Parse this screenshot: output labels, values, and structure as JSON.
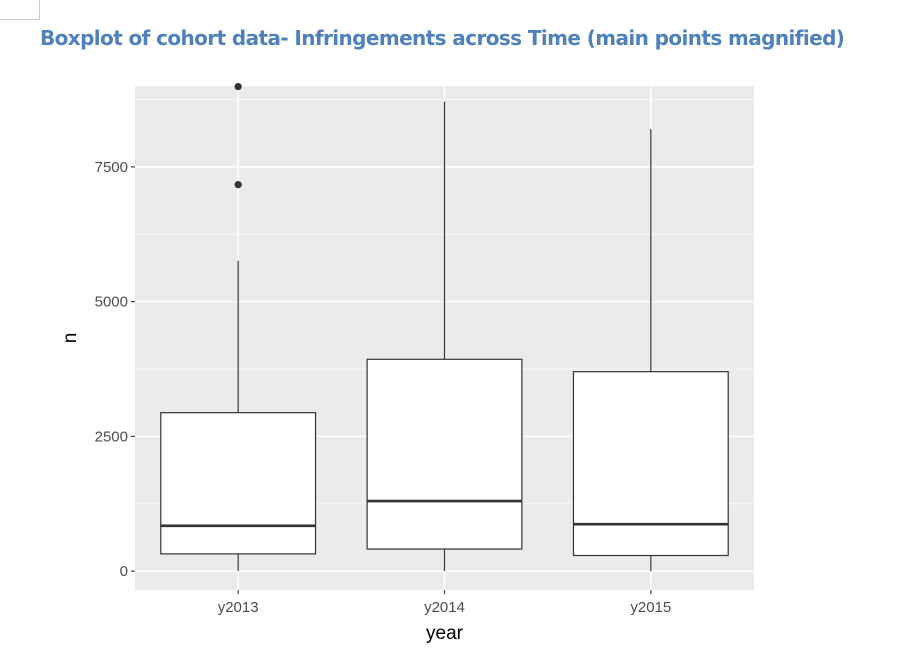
{
  "document": {
    "title": "Boxplot of cohort data- Infringements across Time (main points magnified)"
  },
  "chart_data": {
    "type": "boxplot",
    "xlabel": "year",
    "ylabel": "n",
    "categories": [
      "y2013",
      "y2014",
      "y2015"
    ],
    "ylim": [
      -350,
      9000
    ],
    "yticks": [
      0,
      2500,
      5000,
      7500
    ],
    "grid": true,
    "boxes": [
      {
        "category": "y2013",
        "whisker_low": 0,
        "q1": 320,
        "median": 840,
        "q3": 2940,
        "whisker_high": 5760,
        "outliers": [
          7170,
          8990
        ]
      },
      {
        "category": "y2014",
        "whisker_low": 0,
        "q1": 410,
        "median": 1300,
        "q3": 3930,
        "whisker_high": 8710,
        "outliers": []
      },
      {
        "category": "y2015",
        "whisker_low": 0,
        "q1": 290,
        "median": 870,
        "q3": 3700,
        "whisker_high": 8200,
        "outliers": []
      }
    ],
    "colors": {
      "panel": "#ebebeb",
      "grid_major": "#ffffff",
      "box_fill": "#ffffff",
      "box_stroke": "#333333",
      "title": "#4f81bd"
    }
  }
}
